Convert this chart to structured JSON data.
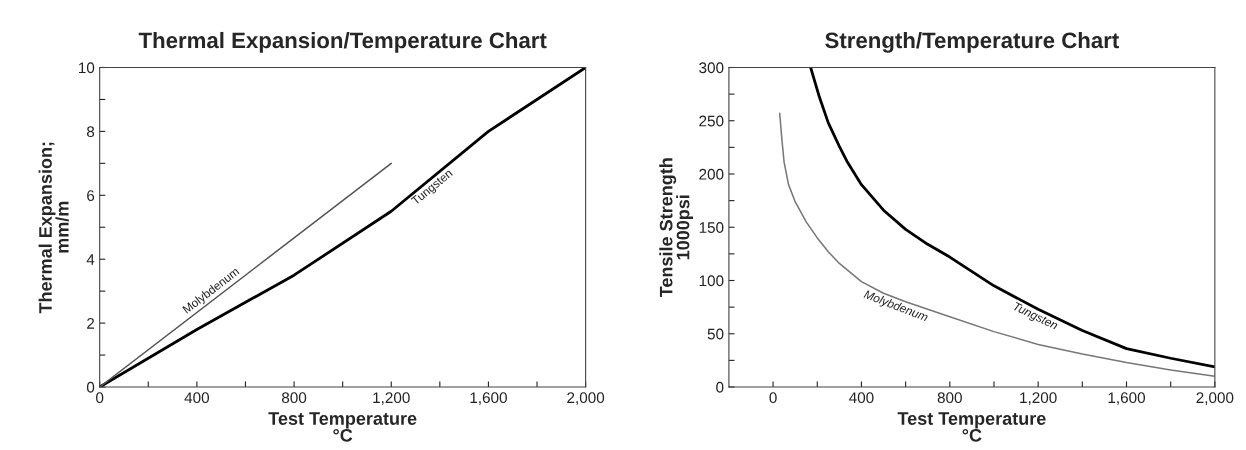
{
  "chart_data": [
    {
      "type": "line",
      "title": "Thermal Expansion/Temperature Chart",
      "xlabel": "Test Temperature\n°C",
      "ylabel": "Thermal Expansion;\nmm/m",
      "series": [
        {
          "name": "Tungsten",
          "color": "#000000",
          "x": [
            0,
            400,
            800,
            1200,
            1600,
            2000
          ],
          "values": [
            0,
            1.8,
            3.5,
            5.5,
            8,
            10
          ]
        },
        {
          "name": "Molybdenum",
          "color": "#555555",
          "x": [
            0,
            1200
          ],
          "values": [
            0,
            7
          ]
        }
      ],
      "xlim": [
        0,
        2000
      ],
      "ylim": [
        0,
        10
      ],
      "xticks": [
        0,
        {
          "value": 200,
          "label": null
        },
        400,
        {
          "value": 600,
          "label": null
        },
        800,
        {
          "value": 1000,
          "label": null
        },
        {
          "value": 1200,
          "label": "1,200"
        },
        {
          "value": 1400,
          "label": null
        },
        {
          "value": 1600,
          "label": "1,600"
        },
        {
          "value": 1800,
          "label": null
        },
        {
          "value": 2000,
          "label": "2,000"
        }
      ],
      "yticks": [
        0,
        {
          "value": 1,
          "label": null
        },
        2,
        {
          "value": 3,
          "label": null
        },
        4,
        {
          "value": 5,
          "label": null
        },
        6,
        {
          "value": 7,
          "label": null
        },
        8,
        {
          "value": 9,
          "label": null
        },
        10
      ],
      "grid": false,
      "legend": false
    },
    {
      "type": "line",
      "title": "Strength/Temperature Chart",
      "xlabel": "Test Temperature\n°C",
      "ylabel": "Tensile Strength\n1000psi",
      "series": [
        {
          "name": "Tungsten",
          "color": "#000000",
          "x": [
            170,
            210,
            250,
            300,
            337,
            400,
            500,
            600,
            700,
            800,
            1000,
            1200,
            1400,
            1600,
            1800,
            2000
          ],
          "values": [
            300,
            272,
            248,
            226,
            211,
            190,
            166,
            148,
            134,
            122,
            95,
            73,
            53,
            36,
            27,
            19
          ]
        },
        {
          "name": "Molybdenum",
          "color": "#777777",
          "x": [
            30,
            40,
            50,
            70,
            100,
            150,
            200,
            250,
            300,
            400,
            500,
            600,
            800,
            1000,
            1200,
            1400,
            1600,
            1800,
            2000
          ],
          "values": [
            257,
            232,
            211,
            190,
            174,
            155,
            140,
            127,
            116,
            99,
            88,
            80,
            66,
            52,
            40,
            31,
            23,
            16,
            10
          ]
        }
      ],
      "xlim": [
        -200,
        2000
      ],
      "ylim": [
        0,
        300
      ],
      "xticks": [
        0,
        {
          "value": 200,
          "label": null
        },
        400,
        {
          "value": 600,
          "label": null
        },
        800,
        {
          "value": 1000,
          "label": null
        },
        {
          "value": 1200,
          "label": "1,200"
        },
        {
          "value": 1400,
          "label": null
        },
        {
          "value": 1600,
          "label": "1,600"
        },
        {
          "value": 1800,
          "label": null
        },
        {
          "value": 2000,
          "label": "2,000"
        }
      ],
      "yticks": [
        0,
        {
          "value": 25,
          "label": null
        },
        50,
        {
          "value": 75,
          "label": null
        },
        100,
        {
          "value": 125,
          "label": null
        },
        150,
        {
          "value": 175,
          "label": null
        },
        200,
        {
          "value": 225,
          "label": null
        },
        250,
        {
          "value": 275,
          "label": null
        },
        300
      ],
      "grid": false,
      "legend": false
    }
  ]
}
